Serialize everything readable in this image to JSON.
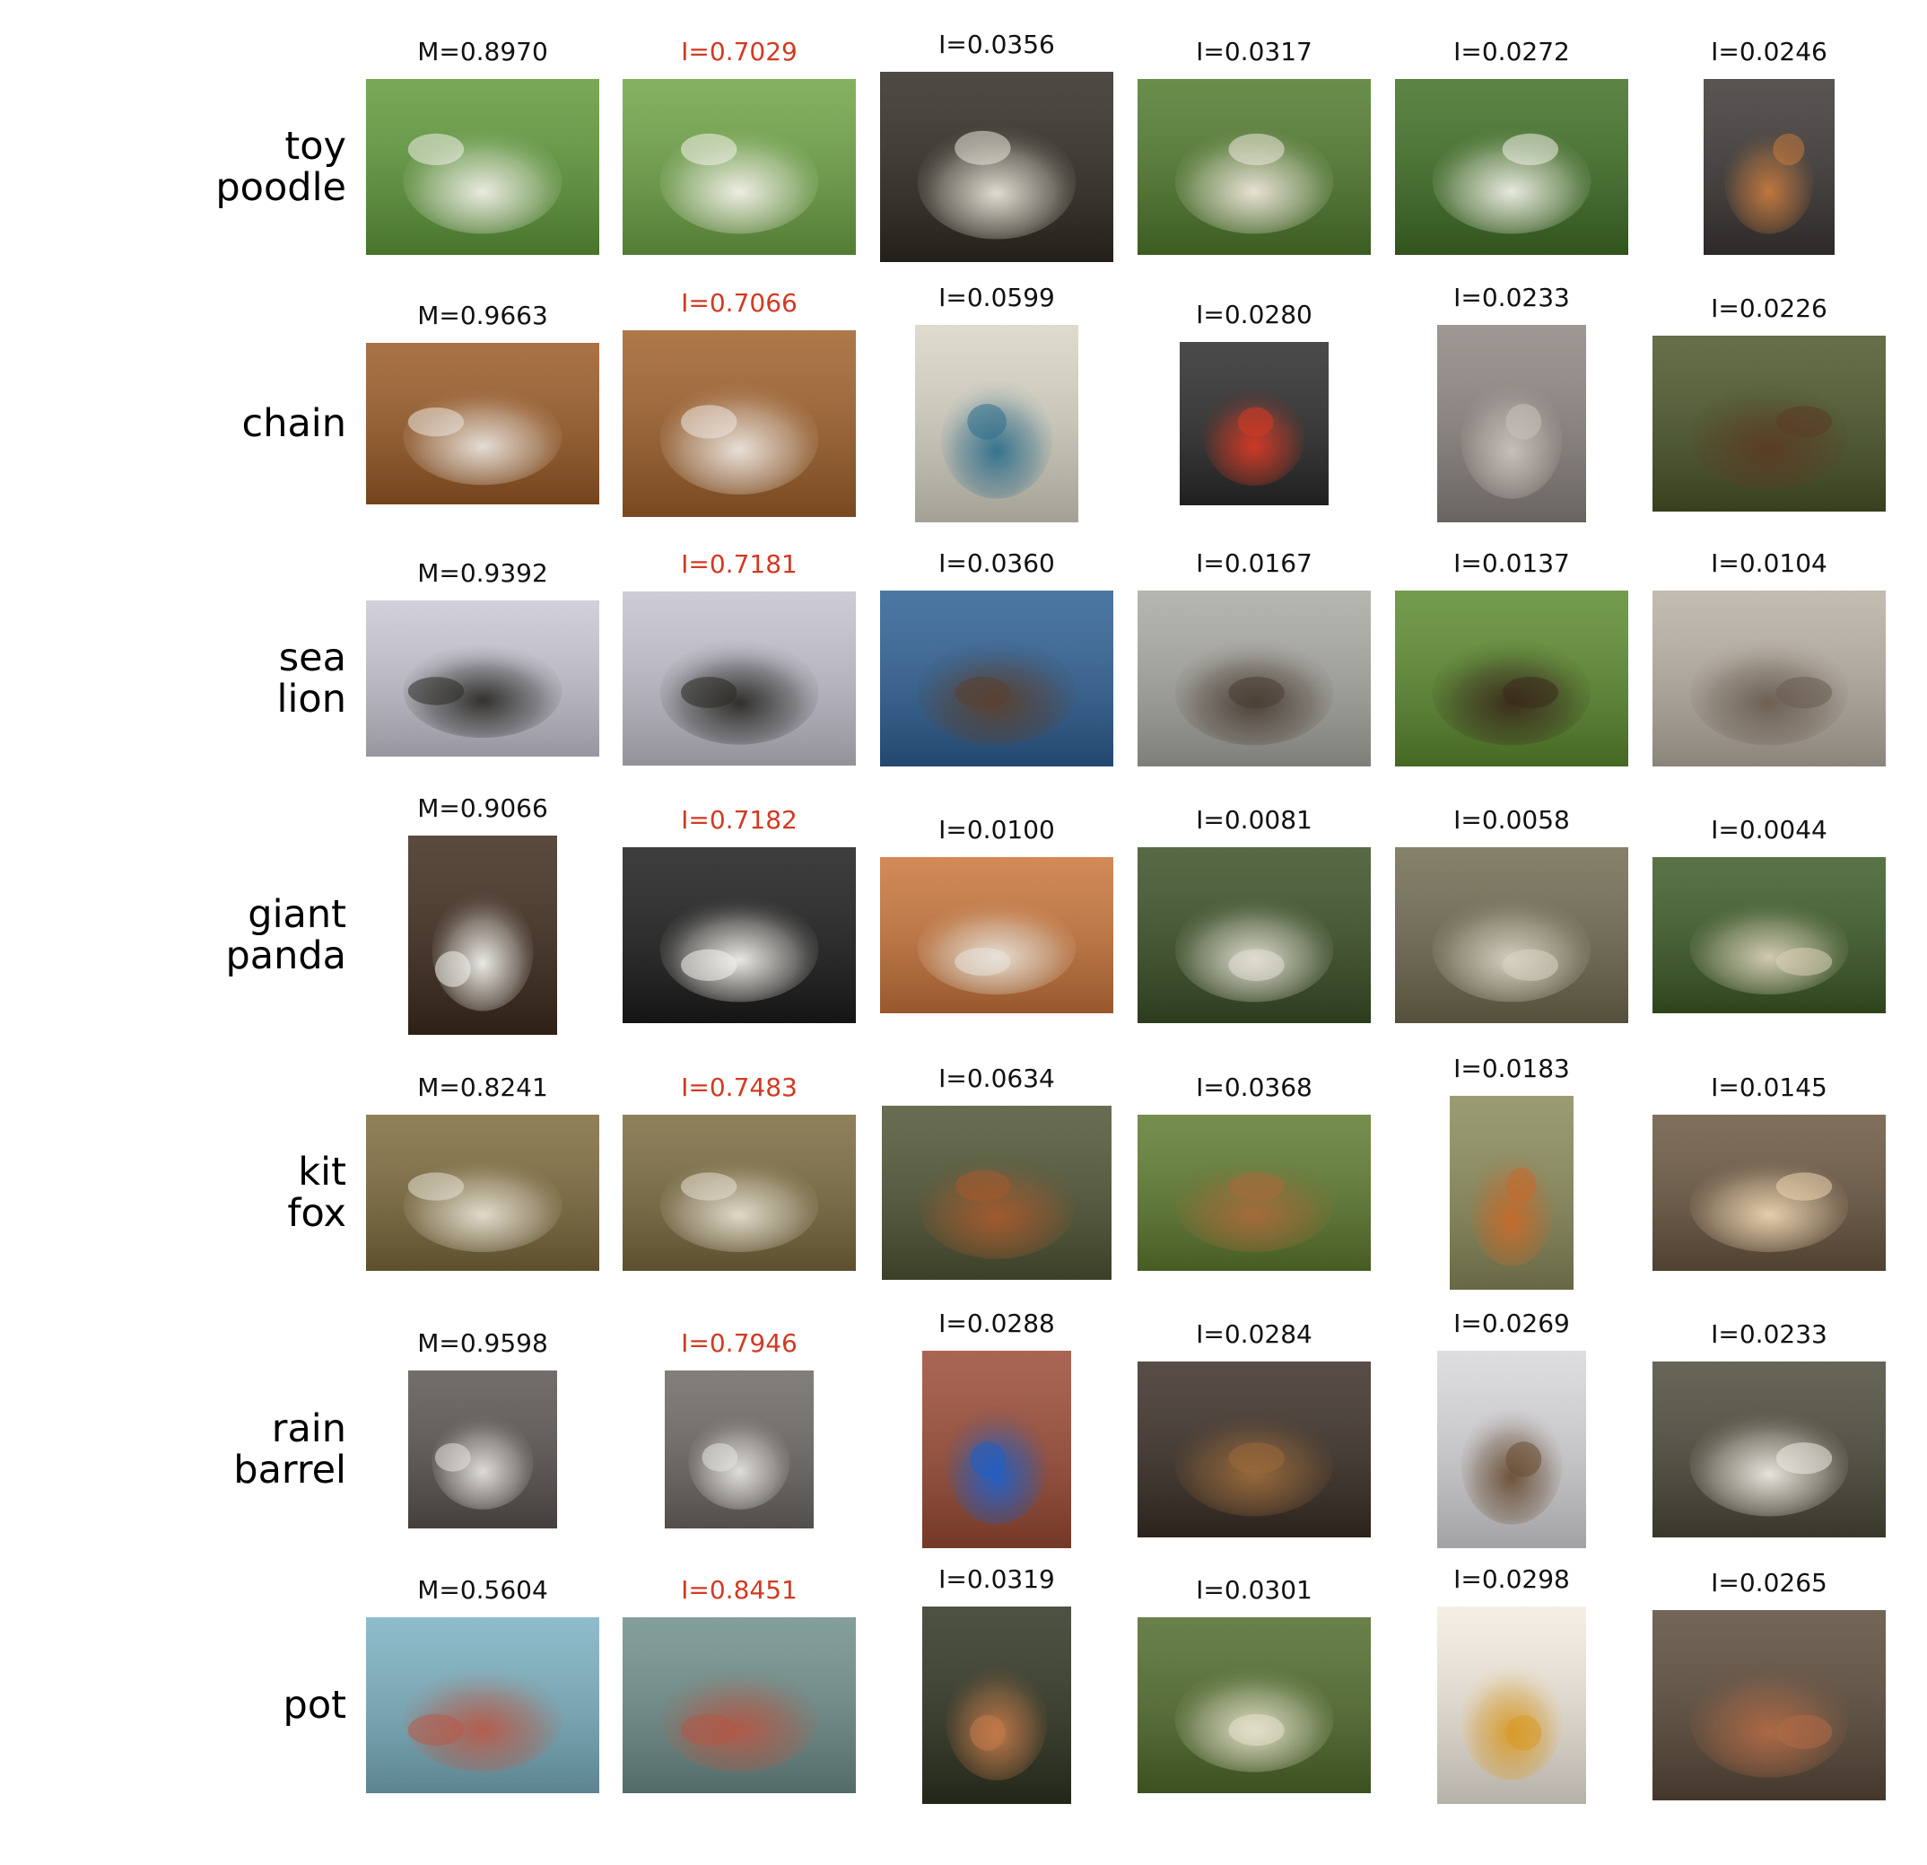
{
  "rows": [
    {
      "label": "toy\npoodle",
      "scores": [
        "M=0.8970",
        "I=0.7029",
        "I=0.0356",
        "I=0.0317",
        "I=0.0272",
        "I=0.0246"
      ],
      "images": [
        {
          "subject": "woman holding two white poodles on grass",
          "bg": "#5f9a3a",
          "accent": "#f1efe8"
        },
        {
          "subject": "woman holding two white poodles on grass",
          "bg": "#6ea445",
          "accent": "#f4f1ea"
        },
        {
          "subject": "white poodle close-up",
          "bg": "#2e2a22",
          "accent": "#e7e4d8"
        },
        {
          "subject": "two white dogs on grass",
          "bg": "#4f7a2c",
          "accent": "#efe7dc"
        },
        {
          "subject": "white poodle lying in grass",
          "bg": "#3f6f24",
          "accent": "#f0efe6"
        },
        {
          "subject": "apricot toy poodle with red ball",
          "bg": "#3a3634",
          "accent": "#c57a3e"
        }
      ]
    },
    {
      "label": "chain",
      "scores": [
        "M=0.9663",
        "I=0.7066",
        "I=0.0599",
        "I=0.0280",
        "I=0.0233",
        "I=0.0226"
      ],
      "images": [
        {
          "subject": "silver chain on wood table",
          "bg": "#9a5a25",
          "accent": "#e9e3dc"
        },
        {
          "subject": "silver chain on wood table",
          "bg": "#a0602a",
          "accent": "#ece6e0"
        },
        {
          "subject": "blue ceramic pendant necklace",
          "bg": "#d9d5c6",
          "accent": "#2f6f8c"
        },
        {
          "subject": "bicycle chain and red frame",
          "bg": "#2a2a2a",
          "accent": "#d63a25"
        },
        {
          "subject": "chain hanging in building",
          "bg": "#8d8580",
          "accent": "#c9c2bc"
        },
        {
          "subject": "rusty chain on post",
          "bg": "#4a5528",
          "accent": "#5b3b24"
        }
      ]
    },
    {
      "label": "sea\nlion",
      "scores": [
        "M=0.9392",
        "I=0.7181",
        "I=0.0360",
        "I=0.0167",
        "I=0.0137",
        "I=0.0104"
      ],
      "images": [
        {
          "subject": "rocky island with sea lions",
          "bg": "#c9c8d4",
          "accent": "#2c2b27"
        },
        {
          "subject": "rocky island with sea lions",
          "bg": "#c4c3cf",
          "accent": "#2a2925"
        },
        {
          "subject": "sea lions on dock, harbor",
          "bg": "#2d5f93",
          "accent": "#5a4030"
        },
        {
          "subject": "sea lion on dock in water",
          "bg": "#a9a9a2",
          "accent": "#4a3e34"
        },
        {
          "subject": "sea lion swimming in green water",
          "bg": "#5b8a2e",
          "accent": "#3a2a1c"
        },
        {
          "subject": "sea lions on sandy beach",
          "bg": "#b8b0a4",
          "accent": "#6a5d50"
        }
      ]
    },
    {
      "label": "giant\npanda",
      "scores": [
        "M=0.9066",
        "I=0.7182",
        "I=0.0100",
        "I=0.0081",
        "I=0.0058",
        "I=0.0044"
      ],
      "images": [
        {
          "subject": "plush panda toy",
          "bg": "#3d2a1c",
          "accent": "#f2f2ee"
        },
        {
          "subject": "plush panda toy close-up",
          "bg": "#1b1b1b",
          "accent": "#f4f2ec"
        },
        {
          "subject": "panda on tree branch",
          "bg": "#c9753a",
          "accent": "#e8e4da"
        },
        {
          "subject": "panda between logs",
          "bg": "#3a4f25",
          "accent": "#e4e0d4"
        },
        {
          "subject": "panda in forest clearing",
          "bg": "#6f6a50",
          "accent": "#d9d4c4"
        },
        {
          "subject": "panda eating bamboo",
          "bg": "#3c5a26",
          "accent": "#d8d0b8"
        }
      ]
    },
    {
      "label": "kit\nfox",
      "scores": [
        "M=0.8241",
        "I=0.7483",
        "I=0.0634",
        "I=0.0368",
        "I=0.0183",
        "I=0.0145"
      ],
      "images": [
        {
          "subject": "arctic fox face",
          "bg": "#7d6a3c",
          "accent": "#e6e0d2"
        },
        {
          "subject": "arctic fox face",
          "bg": "#7a6a3e",
          "accent": "#e5ded0"
        },
        {
          "subject": "red fox kits",
          "bg": "#4e5433",
          "accent": "#a65a2e"
        },
        {
          "subject": "fox and kit in grass",
          "bg": "#5d7a2e",
          "accent": "#a86a3a"
        },
        {
          "subject": "fox pouncing, two frames",
          "bg": "#8a8a5a",
          "accent": "#c76a2a"
        },
        {
          "subject": "fennec fox curled up",
          "bg": "#6a5640",
          "accent": "#ecd4b0"
        }
      ]
    },
    {
      "label": "rain\nbarrel",
      "scores": [
        "M=0.9598",
        "I=0.7946",
        "I=0.0288",
        "I=0.0284",
        "I=0.0269",
        "I=0.0233"
      ],
      "images": [
        {
          "subject": "knitted cover on barrel",
          "bg": "#5a5450",
          "accent": "#e4e2de"
        },
        {
          "subject": "knitted cover on barrel",
          "bg": "#6c6864",
          "accent": "#e6e4e0"
        },
        {
          "subject": "blue plastic barrel by brick wall",
          "bg": "#9a4a34",
          "accent": "#1f5fc7"
        },
        {
          "subject": "wooden barrel",
          "bg": "#3a2e26",
          "accent": "#9a6a3a"
        },
        {
          "subject": "small barrel in snow",
          "bg": "#d8d8dc",
          "accent": "#6a4e34"
        },
        {
          "subject": "white barrel lid close-up",
          "bg": "#4c4a3a",
          "accent": "#eeeae2"
        }
      ]
    },
    {
      "label": "pot",
      "scores": [
        "M=0.5604",
        "I=0.8451",
        "I=0.0319",
        "I=0.0301",
        "I=0.0298",
        "I=0.0265"
      ],
      "images": [
        {
          "subject": "strawberry plants in terracotta pot",
          "bg": "#7ab0c0",
          "accent": "#b85a48"
        },
        {
          "subject": "strawberry plants in terracotta pot",
          "bg": "#6e8e8a",
          "accent": "#b35846"
        },
        {
          "subject": "bag of soil and pots",
          "bg": "#2e3320",
          "accent": "#c47a4a"
        },
        {
          "subject": "many potted plants indoors",
          "bg": "#4f6a2a",
          "accent": "#e6e2cc"
        },
        {
          "subject": "bonsai maple in pot",
          "bg": "#f3ece0",
          "accent": "#d89a28"
        },
        {
          "subject": "terracotta pot with soil",
          "bg": "#5a4a3a",
          "accent": "#b06a45"
        }
      ]
    }
  ]
}
